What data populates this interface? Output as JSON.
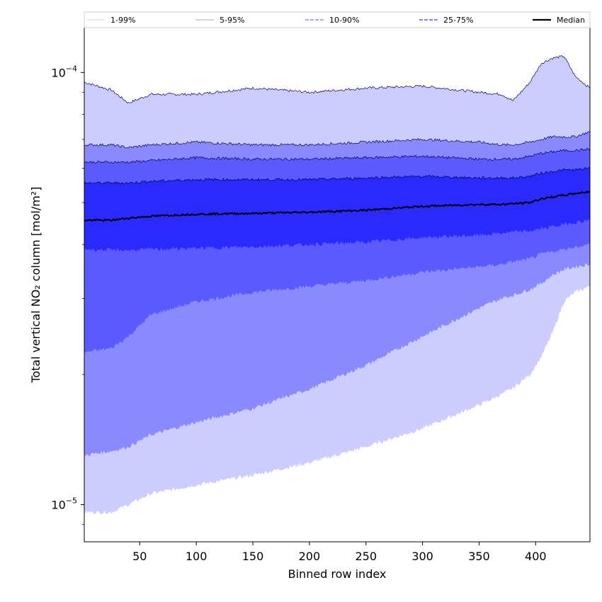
{
  "chart_data": {
    "type": "area",
    "xlabel": "Binned row index",
    "ylabel": "Total vertical NO₂ column [mol/m²]",
    "xlim": [
      1,
      448
    ],
    "ylim": [
      8.2e-06,
      0.000127
    ],
    "yscale": "log",
    "x_ticks": [
      50,
      100,
      150,
      200,
      250,
      300,
      350,
      400
    ],
    "y_ticks": [
      {
        "value": 1e-05,
        "base": "10",
        "exponent": "−5"
      },
      {
        "value": 0.0001,
        "base": "10",
        "exponent": "−4"
      }
    ],
    "grid": false,
    "legend": {
      "placement": "top",
      "entries": [
        {
          "label": "1-99%",
          "color": "#d0d0ff",
          "style": "thin"
        },
        {
          "label": "5-95%",
          "color": "#9c9cff",
          "style": "thin"
        },
        {
          "label": "10-90%",
          "color": "#8a8aff",
          "style": "dashed"
        },
        {
          "label": "25-75%",
          "color": "#5a5aff",
          "style": "dashed"
        },
        {
          "label": "Median",
          "color": "#000000",
          "style": "solid"
        }
      ]
    },
    "x": [
      1,
      25,
      40,
      60,
      100,
      150,
      200,
      250,
      300,
      350,
      370,
      380,
      395,
      405,
      415,
      425,
      435,
      448
    ],
    "bands": [
      {
        "name": "1-99%",
        "color": "#ccccff",
        "upper": [
          9.5e-05,
          9.1e-05,
          8.5e-05,
          8.9e-05,
          8.9e-05,
          9.2e-05,
          9e-05,
          9.2e-05,
          9.3e-05,
          9e-05,
          8.9e-05,
          8.6e-05,
          9.5e-05,
          0.000105,
          0.000108,
          0.000109,
          9.8e-05,
          9.2e-05
        ],
        "lower": [
          9.6e-06,
          9.6e-06,
          1e-05,
          1.06e-05,
          1.11e-05,
          1.17e-05,
          1.25e-05,
          1.36e-05,
          1.5e-05,
          1.7e-05,
          1.8e-05,
          1.86e-05,
          2e-05,
          2.2e-05,
          2.5e-05,
          2.95e-05,
          3.1e-05,
          3.2e-05
        ]
      },
      {
        "name": "5-95%",
        "color": "#8a8aff",
        "upper": [
          6.8e-05,
          6.8e-05,
          6.7e-05,
          6.8e-05,
          6.9e-05,
          6.8e-05,
          6.8e-05,
          6.9e-05,
          7e-05,
          6.9e-05,
          6.8e-05,
          6.8e-05,
          6.9e-05,
          7e-05,
          7.1e-05,
          7.1e-05,
          7.1e-05,
          7.3e-05
        ],
        "lower": [
          1.3e-05,
          1.33e-05,
          1.36e-05,
          1.45e-05,
          1.55e-05,
          1.67e-05,
          1.85e-05,
          2.1e-05,
          2.45e-05,
          2.85e-05,
          3e-05,
          3.05e-05,
          3.15e-05,
          3.25e-05,
          3.4e-05,
          3.5e-05,
          3.55e-05,
          3.6e-05
        ]
      },
      {
        "name": "10-90%",
        "color": "#5a5aff",
        "upper": [
          6.2e-05,
          6.2e-05,
          6.2e-05,
          6.25e-05,
          6.35e-05,
          6.3e-05,
          6.3e-05,
          6.35e-05,
          6.4e-05,
          6.3e-05,
          6.3e-05,
          6.3e-05,
          6.4e-05,
          6.5e-05,
          6.55e-05,
          6.6e-05,
          6.6e-05,
          6.65e-05
        ],
        "lower": [
          2.25e-05,
          2.3e-05,
          2.45e-05,
          2.75e-05,
          2.95e-05,
          3.1e-05,
          3.2e-05,
          3.3e-05,
          3.45e-05,
          3.55e-05,
          3.6e-05,
          3.65e-05,
          3.7e-05,
          3.8e-05,
          3.85e-05,
          3.9e-05,
          3.95e-05,
          4e-05
        ]
      },
      {
        "name": "25-75%",
        "color": "#2a2aff",
        "upper": [
          5.55e-05,
          5.55e-05,
          5.55e-05,
          5.6e-05,
          5.65e-05,
          5.65e-05,
          5.65e-05,
          5.7e-05,
          5.75e-05,
          5.7e-05,
          5.7e-05,
          5.7e-05,
          5.75e-05,
          5.85e-05,
          5.9e-05,
          5.95e-05,
          5.95e-05,
          6e-05
        ],
        "lower": [
          3.9e-05,
          3.88e-05,
          3.88e-05,
          3.9e-05,
          3.92e-05,
          3.95e-05,
          4e-05,
          4.05e-05,
          4.15e-05,
          4.2e-05,
          4.25e-05,
          4.27e-05,
          4.3e-05,
          4.35e-05,
          4.4e-05,
          4.45e-05,
          4.5e-05,
          4.55e-05
        ]
      }
    ],
    "median": {
      "name": "Median",
      "color": "#000000",
      "values": [
        4.55e-05,
        4.55e-05,
        4.6e-05,
        4.65e-05,
        4.7e-05,
        4.72e-05,
        4.75e-05,
        4.8e-05,
        4.9e-05,
        4.95e-05,
        4.95e-05,
        4.97e-05,
        5e-05,
        5.1e-05,
        5.15e-05,
        5.2e-05,
        5.25e-05,
        5.3e-05
      ]
    }
  }
}
